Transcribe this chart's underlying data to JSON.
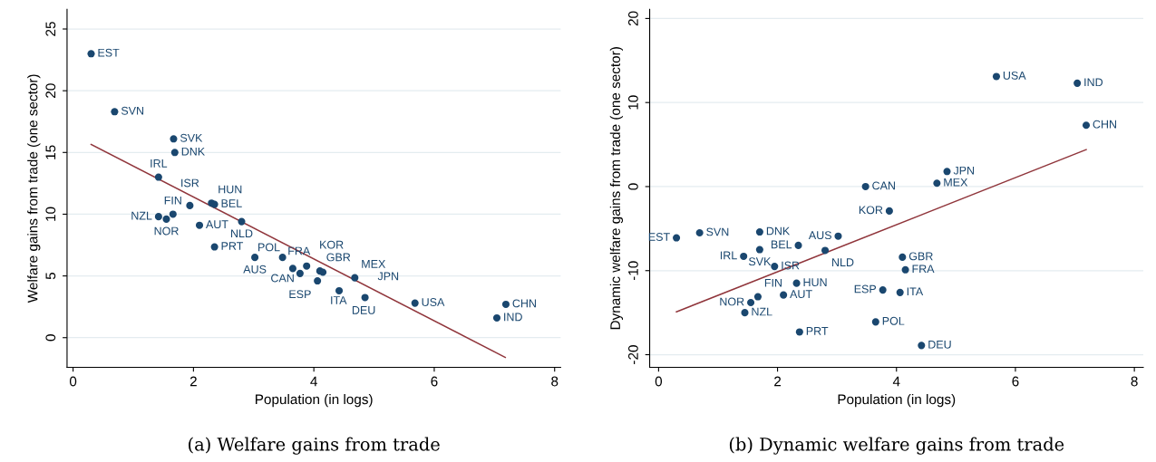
{
  "chart_data": [
    {
      "type": "scatter",
      "xlabel": "Population (in logs)",
      "ylabel": "Welfare gains from trade (one sector)",
      "xlim": [
        -0.1,
        8.1
      ],
      "ylim": [
        -2.4,
        26.6
      ],
      "xticks": [
        0,
        2,
        4,
        6,
        8
      ],
      "yticks": [
        0,
        5,
        10,
        15,
        20,
        25
      ],
      "grid": "y",
      "series": [
        {
          "color": "#1a476f",
          "marker": "circle",
          "x": [
            0.3,
            0.69,
            1.67,
            1.69,
            1.42,
            1.94,
            2.3,
            2.35,
            1.66,
            1.42,
            1.55,
            2.1,
            2.8,
            2.35,
            3.02,
            3.48,
            3.88,
            3.65,
            3.77,
            4.1,
            4.15,
            4.06,
            4.68,
            4.42,
            4.85,
            5.68,
            7.19,
            7.04
          ],
          "values": [
            23.0,
            18.3,
            16.1,
            15.0,
            13.0,
            10.7,
            10.9,
            10.8,
            10.0,
            9.8,
            9.6,
            9.1,
            9.4,
            7.35,
            6.5,
            6.5,
            5.8,
            5.6,
            5.2,
            5.4,
            5.3,
            4.6,
            4.85,
            3.8,
            3.25,
            2.8,
            2.7,
            1.6
          ]
        },
        {
          "type": "line",
          "color": "#90353b",
          "x": [
            0.3,
            7.18
          ],
          "values": [
            15.65,
            -1.6
          ]
        }
      ],
      "annotations": [
        {
          "text": "EST",
          "x": 0.3,
          "y": 23.0
        },
        {
          "text": "SVN",
          "x": 0.69,
          "y": 18.3
        },
        {
          "text": "SVK",
          "x": 1.67,
          "y": 16.1
        },
        {
          "text": "DNK",
          "x": 1.69,
          "y": 15.0
        },
        {
          "text": "IRL",
          "x": 1.42,
          "y": 13.0
        },
        {
          "text": "ISR",
          "x": 1.94,
          "y": 10.7
        },
        {
          "text": "HUN",
          "x": 2.3,
          "y": 10.9
        },
        {
          "text": "BEL",
          "x": 2.35,
          "y": 10.8
        },
        {
          "text": "FIN",
          "x": 1.66,
          "y": 10.0
        },
        {
          "text": "NZL",
          "x": 1.42,
          "y": 9.8
        },
        {
          "text": "NOR",
          "x": 1.55,
          "y": 9.6
        },
        {
          "text": "AUT",
          "x": 2.1,
          "y": 9.1
        },
        {
          "text": "NLD",
          "x": 2.8,
          "y": 9.4
        },
        {
          "text": "PRT",
          "x": 2.35,
          "y": 7.35
        },
        {
          "text": "AUS",
          "x": 3.02,
          "y": 6.5
        },
        {
          "text": "CAN",
          "x": 3.48,
          "y": 6.5
        },
        {
          "text": "KOR",
          "x": 3.88,
          "y": 5.8
        },
        {
          "text": "POL",
          "x": 3.65,
          "y": 5.6
        },
        {
          "text": "ESP",
          "x": 3.77,
          "y": 5.2
        },
        {
          "text": "GBR",
          "x": 4.1,
          "y": 5.4
        },
        {
          "text": "FRA",
          "x": 4.15,
          "y": 5.3
        },
        {
          "text": "ITA",
          "x": 4.06,
          "y": 4.6
        },
        {
          "text": "MEX",
          "x": 4.68,
          "y": 4.85
        },
        {
          "text": "DEU",
          "x": 4.42,
          "y": 3.8
        },
        {
          "text": "JPN",
          "x": 4.85,
          "y": 3.25
        },
        {
          "text": "USA",
          "x": 5.68,
          "y": 2.8
        },
        {
          "text": "CHN",
          "x": 7.19,
          "y": 2.7
        },
        {
          "text": "IND",
          "x": 7.04,
          "y": 1.6
        },
        "(a) Welfare gains from trade"
      ]
    },
    {
      "type": "scatter",
      "xlabel": "Population (in logs)",
      "ylabel": "Dynamic welfare gains from trade (one sector)",
      "xlim": [
        -0.15,
        8.15
      ],
      "ylim": [
        -21.5,
        21.1
      ],
      "xticks": [
        0,
        2,
        4,
        6,
        8
      ],
      "yticks": [
        -20,
        -10,
        0,
        10,
        20
      ],
      "grid": "y",
      "series": [
        {
          "color": "#1a476f",
          "marker": "circle",
          "x": [
            0.3,
            0.69,
            1.7,
            3.02,
            2.35,
            2.8,
            1.7,
            1.43,
            1.95,
            2.32,
            1.67,
            2.1,
            1.55,
            1.45,
            2.37,
            3.65,
            3.77,
            4.06,
            4.1,
            4.15,
            4.42,
            3.88,
            3.48,
            4.68,
            4.85,
            5.68,
            7.04,
            7.19
          ],
          "values": [
            -6.1,
            -5.5,
            -5.4,
            -5.9,
            -7.0,
            -7.6,
            -7.5,
            -8.3,
            -9.5,
            -11.5,
            -13.1,
            -12.9,
            -13.8,
            -15.0,
            -17.3,
            -16.1,
            -12.3,
            -12.6,
            -8.4,
            -9.9,
            -18.9,
            -2.9,
            0.0,
            0.4,
            1.8,
            13.1,
            12.3,
            7.3
          ]
        },
        {
          "type": "line",
          "color": "#90353b",
          "x": [
            0.3,
            7.19
          ],
          "values": [
            -14.9,
            4.4
          ]
        }
      ],
      "annotations": [
        {
          "text": "EST",
          "x": 0.3,
          "y": -6.1
        },
        {
          "text": "SVN",
          "x": 0.69,
          "y": -5.5
        },
        {
          "text": "DNK",
          "x": 1.7,
          "y": -5.4
        },
        {
          "text": "AUS",
          "x": 3.02,
          "y": -5.9
        },
        {
          "text": "BEL",
          "x": 2.35,
          "y": -7.0
        },
        {
          "text": "NLD",
          "x": 2.8,
          "y": -7.6
        },
        {
          "text": "SVK",
          "x": 1.7,
          "y": -7.5
        },
        {
          "text": "IRL",
          "x": 1.43,
          "y": -8.3
        },
        {
          "text": "ISR",
          "x": 1.95,
          "y": -9.5
        },
        {
          "text": "HUN",
          "x": 2.32,
          "y": -11.5
        },
        {
          "text": "FIN",
          "x": 1.67,
          "y": -13.1
        },
        {
          "text": "AUT",
          "x": 2.1,
          "y": -12.9
        },
        {
          "text": "NOR",
          "x": 1.55,
          "y": -13.8
        },
        {
          "text": "NZL",
          "x": 1.45,
          "y": -15.0
        },
        {
          "text": "PRT",
          "x": 2.37,
          "y": -17.3
        },
        {
          "text": "POL",
          "x": 3.65,
          "y": -16.1
        },
        {
          "text": "ESP",
          "x": 3.77,
          "y": -12.3
        },
        {
          "text": "ITA",
          "x": 4.06,
          "y": -12.6
        },
        {
          "text": "GBR",
          "x": 4.1,
          "y": -8.4
        },
        {
          "text": "FRA",
          "x": 4.15,
          "y": -9.9
        },
        {
          "text": "DEU",
          "x": 4.42,
          "y": -18.9
        },
        {
          "text": "KOR",
          "x": 3.88,
          "y": -2.9
        },
        {
          "text": "CAN",
          "x": 3.48,
          "y": 0.0
        },
        {
          "text": "MEX",
          "x": 4.68,
          "y": 0.4
        },
        {
          "text": "JPN",
          "x": 4.85,
          "y": 1.8
        },
        {
          "text": "USA",
          "x": 5.68,
          "y": 13.1
        },
        {
          "text": "IND",
          "x": 7.04,
          "y": 12.3
        },
        {
          "text": "CHN",
          "x": 7.19,
          "y": 7.3
        },
        "(b) Dynamic welfare gains from trade"
      ]
    }
  ]
}
